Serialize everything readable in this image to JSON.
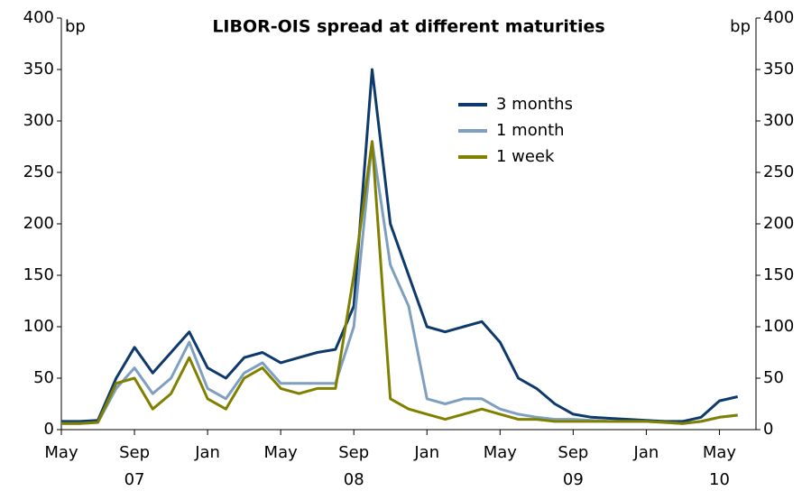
{
  "chart_data": {
    "type": "line",
    "title": "LIBOR-OIS spread at different maturities",
    "y_unit_label": "bp",
    "y2_unit_label": "bp",
    "x": [
      "2007-05",
      "2007-06",
      "2007-07",
      "2007-08",
      "2007-09",
      "2007-10",
      "2007-11",
      "2007-12",
      "2008-01",
      "2008-02",
      "2008-03",
      "2008-04",
      "2008-05",
      "2008-06",
      "2008-07",
      "2008-08",
      "2008-09",
      "2008-10",
      "2008-11",
      "2008-12",
      "2009-01",
      "2009-02",
      "2009-03",
      "2009-04",
      "2009-05",
      "2009-06",
      "2009-07",
      "2009-08",
      "2009-09",
      "2009-10",
      "2009-11",
      "2009-12",
      "2010-01",
      "2010-02",
      "2010-03",
      "2010-04",
      "2010-05",
      "2010-06"
    ],
    "series": [
      {
        "name": "3 months",
        "color": "#0d3a6b",
        "values": [
          8,
          8,
          9,
          50,
          80,
          55,
          75,
          95,
          60,
          50,
          70,
          75,
          65,
          70,
          75,
          78,
          120,
          350,
          200,
          150,
          100,
          95,
          100,
          105,
          85,
          50,
          40,
          25,
          15,
          12,
          11,
          10,
          9,
          8,
          8,
          12,
          28,
          32
        ]
      },
      {
        "name": "1 month",
        "color": "#7f9fc0",
        "values": [
          6,
          6,
          7,
          40,
          60,
          35,
          50,
          85,
          40,
          30,
          55,
          65,
          45,
          45,
          45,
          45,
          100,
          280,
          160,
          120,
          30,
          25,
          30,
          30,
          20,
          15,
          12,
          10,
          10,
          9,
          8,
          8,
          8,
          7,
          6,
          8,
          12,
          14
        ]
      },
      {
        "name": "1 week",
        "color": "#808000",
        "values": [
          6,
          6,
          7,
          45,
          50,
          20,
          35,
          70,
          30,
          20,
          50,
          60,
          40,
          35,
          40,
          40,
          150,
          280,
          30,
          20,
          15,
          10,
          15,
          20,
          15,
          10,
          10,
          8,
          8,
          8,
          8,
          8,
          8,
          7,
          6,
          8,
          12,
          14
        ]
      }
    ],
    "xlim": [
      "2007-05",
      "2010-07"
    ],
    "xticks": [
      {
        "value": "2007-05",
        "label": "May"
      },
      {
        "value": "2007-09",
        "label": "Sep"
      },
      {
        "value": "2008-01",
        "label": "Jan"
      },
      {
        "value": "2008-05",
        "label": "May"
      },
      {
        "value": "2008-09",
        "label": "Sep"
      },
      {
        "value": "2009-01",
        "label": "Jan"
      },
      {
        "value": "2009-05",
        "label": "May"
      },
      {
        "value": "2009-09",
        "label": "Sep"
      },
      {
        "value": "2010-01",
        "label": "Jan"
      },
      {
        "value": "2010-05",
        "label": "May"
      }
    ],
    "year_labels": [
      {
        "value": "2007-09",
        "label": "07"
      },
      {
        "value": "2008-09",
        "label": "08"
      },
      {
        "value": "2009-09",
        "label": "09"
      },
      {
        "value": "2010-05",
        "label": "10"
      }
    ],
    "ylim": [
      0,
      400
    ],
    "yticks": [
      0,
      50,
      100,
      150,
      200,
      250,
      300,
      350,
      400
    ],
    "y2lim": [
      0,
      400
    ],
    "y2ticks": [
      0,
      50,
      100,
      150,
      200,
      250,
      300,
      350,
      400
    ],
    "grid": false
  }
}
